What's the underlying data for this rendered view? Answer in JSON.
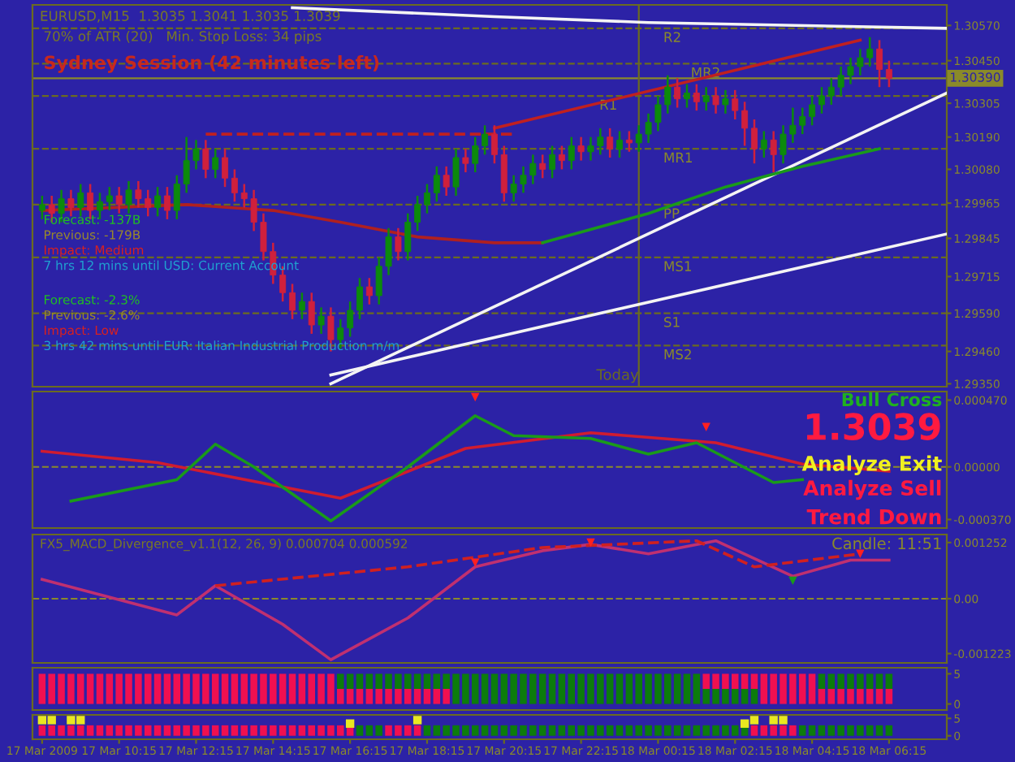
{
  "chart_data": [
    {
      "type": "candlestick",
      "title": "EURUSD,M15  1.3035 1.3041 1.3035 1.3039",
      "x": [
        "2009-03-17T08:15",
        "2009-03-17T08:30",
        "2009-03-17T08:45",
        "2009-03-17T09:00",
        "2009-03-17T09:15",
        "2009-03-17T09:30",
        "2009-03-17T09:45",
        "2009-03-17T10:00",
        "2009-03-17T10:15",
        "2009-03-17T10:30",
        "2009-03-17T10:45",
        "2009-03-17T11:00",
        "2009-03-17T11:15",
        "2009-03-17T11:30",
        "2009-03-17T11:45",
        "2009-03-17T12:00",
        "2009-03-17T12:15",
        "2009-03-17T12:30",
        "2009-03-17T12:45",
        "2009-03-17T13:00",
        "2009-03-17T13:15",
        "2009-03-17T13:30",
        "2009-03-17T13:45",
        "2009-03-17T14:00",
        "2009-03-17T14:15",
        "2009-03-17T14:30",
        "2009-03-17T14:45",
        "2009-03-17T15:00",
        "2009-03-17T15:15",
        "2009-03-17T15:30",
        "2009-03-17T15:45",
        "2009-03-17T16:00",
        "2009-03-17T16:15",
        "2009-03-17T16:30",
        "2009-03-17T16:45",
        "2009-03-17T17:00",
        "2009-03-17T17:15",
        "2009-03-17T17:30",
        "2009-03-17T17:45",
        "2009-03-17T18:00",
        "2009-03-17T18:15",
        "2009-03-17T18:30",
        "2009-03-17T18:45",
        "2009-03-17T19:00",
        "2009-03-17T19:15",
        "2009-03-17T19:30",
        "2009-03-17T19:45",
        "2009-03-17T20:00",
        "2009-03-17T20:15",
        "2009-03-17T20:30",
        "2009-03-17T20:45",
        "2009-03-17T21:00",
        "2009-03-17T21:15",
        "2009-03-17T21:30",
        "2009-03-17T21:45",
        "2009-03-17T22:00",
        "2009-03-17T22:15",
        "2009-03-17T22:30",
        "2009-03-17T22:45",
        "2009-03-17T23:00",
        "2009-03-17T23:15",
        "2009-03-17T23:30",
        "2009-03-17T23:45",
        "2009-03-18T00:00",
        "2009-03-18T00:15",
        "2009-03-18T00:30",
        "2009-03-18T00:45",
        "2009-03-18T01:00",
        "2009-03-18T01:15",
        "2009-03-18T01:30",
        "2009-03-18T01:45",
        "2009-03-18T02:00",
        "2009-03-18T02:15",
        "2009-03-18T02:30",
        "2009-03-18T02:45",
        "2009-03-18T03:00",
        "2009-03-18T03:15",
        "2009-03-18T03:30",
        "2009-03-18T03:45",
        "2009-03-18T04:00",
        "2009-03-18T04:15",
        "2009-03-18T04:30",
        "2009-03-18T04:45",
        "2009-03-18T05:00",
        "2009-03-18T05:15",
        "2009-03-18T05:30",
        "2009-03-18T05:45",
        "2009-03-18T06:00",
        "2009-03-18T06:15"
      ],
      "ohlc": [
        [
          1.2994,
          1.2999,
          1.2991,
          1.2996
        ],
        [
          1.2996,
          1.2999,
          1.299,
          1.2993
        ],
        [
          1.2993,
          1.3001,
          1.299,
          1.2998
        ],
        [
          1.2998,
          1.3001,
          1.2992,
          1.2995
        ],
        [
          1.2995,
          1.3003,
          1.2992,
          1.3
        ],
        [
          1.3,
          1.3003,
          1.2991,
          1.2994
        ],
        [
          1.2994,
          1.3,
          1.2991,
          1.2997
        ],
        [
          1.2997,
          1.3002,
          1.2994,
          1.2999
        ],
        [
          1.2999,
          1.3002,
          1.2993,
          1.2996
        ],
        [
          1.2996,
          1.3004,
          1.2993,
          1.3001
        ],
        [
          1.3001,
          1.3004,
          1.2995,
          1.2998
        ],
        [
          1.2998,
          1.3001,
          1.2992,
          1.2995
        ],
        [
          1.2995,
          1.3002,
          1.2992,
          1.2999
        ],
        [
          1.2999,
          1.3002,
          1.2991,
          1.2994
        ],
        [
          1.2994,
          1.3006,
          1.2991,
          1.3003
        ],
        [
          1.3003,
          1.3019,
          1.3,
          1.3011
        ],
        [
          1.3011,
          1.3018,
          1.3008,
          1.3015
        ],
        [
          1.3015,
          1.3018,
          1.3005,
          1.3008
        ],
        [
          1.3008,
          1.3015,
          1.3005,
          1.3012
        ],
        [
          1.3012,
          1.3015,
          1.3002,
          1.3005
        ],
        [
          1.3005,
          1.3008,
          1.2997,
          1.3
        ],
        [
          1.3,
          1.3003,
          1.2995,
          1.2998
        ],
        [
          1.2998,
          1.3001,
          1.2987,
          1.299
        ],
        [
          1.299,
          1.2993,
          1.2977,
          1.298
        ],
        [
          1.298,
          1.2983,
          1.2969,
          1.2972
        ],
        [
          1.2972,
          1.2975,
          1.2963,
          1.2966
        ],
        [
          1.2966,
          1.2969,
          1.2957,
          1.296
        ],
        [
          1.296,
          1.2966,
          1.2957,
          1.2963
        ],
        [
          1.2963,
          1.2966,
          1.2952,
          1.2955
        ],
        [
          1.2955,
          1.2961,
          1.2952,
          1.2958
        ],
        [
          1.2958,
          1.2961,
          1.2946,
          1.295
        ],
        [
          1.295,
          1.2957,
          1.2947,
          1.2954
        ],
        [
          1.2954,
          1.2963,
          1.2951,
          1.296
        ],
        [
          1.296,
          1.2971,
          1.2957,
          1.2968
        ],
        [
          1.2968,
          1.2971,
          1.2962,
          1.2965
        ],
        [
          1.2965,
          1.2978,
          1.2962,
          1.2975
        ],
        [
          1.2975,
          1.2988,
          1.2972,
          1.2985
        ],
        [
          1.2985,
          1.2988,
          1.2977,
          1.298
        ],
        [
          1.298,
          1.2993,
          1.2977,
          1.299
        ],
        [
          1.299,
          1.2999,
          1.2987,
          1.2996
        ],
        [
          1.2996,
          1.3003,
          1.2993,
          1.3
        ],
        [
          1.3,
          1.3009,
          1.2997,
          1.3006
        ],
        [
          1.3006,
          1.3009,
          1.2999,
          1.3002
        ],
        [
          1.3002,
          1.3015,
          1.2999,
          1.3012
        ],
        [
          1.3012,
          1.3015,
          1.3007,
          1.301
        ],
        [
          1.301,
          1.3019,
          1.3007,
          1.3016
        ],
        [
          1.3016,
          1.3023,
          1.3013,
          1.302
        ],
        [
          1.302,
          1.3023,
          1.301,
          1.3013
        ],
        [
          1.3013,
          1.3016,
          1.2997,
          1.3
        ],
        [
          1.3,
          1.3006,
          1.2997,
          1.3003
        ],
        [
          1.3003,
          1.3009,
          1.3,
          1.3006
        ],
        [
          1.3006,
          1.3013,
          1.3003,
          1.301
        ],
        [
          1.301,
          1.3013,
          1.3005,
          1.3008
        ],
        [
          1.3008,
          1.3016,
          1.3005,
          1.3013
        ],
        [
          1.3013,
          1.3016,
          1.3008,
          1.3011
        ],
        [
          1.3011,
          1.3019,
          1.3008,
          1.3016
        ],
        [
          1.3016,
          1.3019,
          1.3011,
          1.3014
        ],
        [
          1.3014,
          1.3019,
          1.3011,
          1.3016
        ],
        [
          1.3016,
          1.3022,
          1.3013,
          1.3019
        ],
        [
          1.3019,
          1.3022,
          1.3012,
          1.3015
        ],
        [
          1.3015,
          1.3021,
          1.3012,
          1.3018
        ],
        [
          1.3018,
          1.3021,
          1.3014,
          1.3017
        ],
        [
          1.3017,
          1.3023,
          1.3014,
          1.302
        ],
        [
          1.302,
          1.3027,
          1.3017,
          1.3024
        ],
        [
          1.3024,
          1.3033,
          1.3021,
          1.303
        ],
        [
          1.303,
          1.304,
          1.3027,
          1.3036
        ],
        [
          1.3036,
          1.3039,
          1.3029,
          1.3032
        ],
        [
          1.3032,
          1.3037,
          1.3029,
          1.3034
        ],
        [
          1.3034,
          1.3037,
          1.3028,
          1.3031
        ],
        [
          1.3031,
          1.3036,
          1.3028,
          1.3033
        ],
        [
          1.3033,
          1.3036,
          1.3027,
          1.303
        ],
        [
          1.303,
          1.3035,
          1.3027,
          1.3032
        ],
        [
          1.3032,
          1.3035,
          1.3025,
          1.3028
        ],
        [
          1.3028,
          1.3031,
          1.3016,
          1.3022
        ],
        [
          1.3022,
          1.3025,
          1.301,
          1.3015
        ],
        [
          1.3015,
          1.3021,
          1.3012,
          1.3018
        ],
        [
          1.3018,
          1.3021,
          1.3007,
          1.3013
        ],
        [
          1.3013,
          1.3023,
          1.301,
          1.302
        ],
        [
          1.302,
          1.3029,
          1.3017,
          1.3023
        ],
        [
          1.3023,
          1.3029,
          1.302,
          1.3026
        ],
        [
          1.3026,
          1.3033,
          1.3023,
          1.303
        ],
        [
          1.303,
          1.3036,
          1.3027,
          1.3033
        ],
        [
          1.3033,
          1.3039,
          1.303,
          1.3036
        ],
        [
          1.3036,
          1.3043,
          1.3033,
          1.304
        ],
        [
          1.304,
          1.3046,
          1.3037,
          1.3043
        ],
        [
          1.3043,
          1.3049,
          1.304,
          1.3046
        ],
        [
          1.3046,
          1.3053,
          1.3043,
          1.3049
        ],
        [
          1.3049,
          1.3052,
          1.3036,
          1.3042
        ],
        [
          1.3042,
          1.3045,
          1.3036,
          1.3039
        ]
      ],
      "series": [
        {
          "type": "line",
          "color": "#f4f4f4",
          "x": [
            "2009-03-17T14:45",
            "2009-03-17T20:00",
            "2009-03-18T00:00",
            "2009-03-18T07:45"
          ],
          "values": [
            1.3063,
            1.306,
            1.3058,
            1.3056
          ]
        },
        {
          "type": "line",
          "color": "#f4f4f4",
          "x": [
            "2009-03-17T15:45",
            "2009-03-18T07:45"
          ],
          "values": [
            1.2935,
            1.3034
          ]
        },
        {
          "type": "line",
          "color": "#f4f4f4",
          "x": [
            "2009-03-17T15:45",
            "2009-03-18T07:45"
          ],
          "values": [
            1.2938,
            1.2986
          ]
        },
        {
          "type": "line",
          "color": "#c02020",
          "x": [
            "2009-03-17T20:00",
            "2009-03-18T05:30"
          ],
          "values": [
            1.3022,
            1.3052
          ]
        },
        {
          "type": "line",
          "color": "#c02020",
          "line_style": "dashed",
          "x": [
            "2009-03-17T12:30",
            "2009-03-17T20:30"
          ],
          "values": [
            1.302,
            1.302
          ]
        },
        {
          "type": "line",
          "color": "#b02020",
          "x": [
            "2009-03-17T08:15",
            "2009-03-17T12:00",
            "2009-03-17T14:15",
            "2009-03-17T16:00",
            "2009-03-17T18:00",
            "2009-03-17T20:00",
            "2009-03-17T21:15"
          ],
          "values": [
            1.2994,
            1.2996,
            1.2994,
            1.299,
            1.2985,
            1.2983,
            1.2983
          ]
        },
        {
          "type": "line",
          "color": "#1a9a1a",
          "x": [
            "2009-03-17T21:15",
            "2009-03-18T00:00",
            "2009-03-18T02:00",
            "2009-03-18T04:00",
            "2009-03-18T06:00"
          ],
          "values": [
            1.2983,
            1.2993,
            1.3002,
            1.3009,
            1.3015
          ]
        }
      ],
      "ref_lines": [
        {
          "axis": "y",
          "value": 1.3056,
          "label": "R2",
          "color": "#6b6b20",
          "line_style": "dashed"
        },
        {
          "axis": "y",
          "value": 1.3044,
          "label": "MR2",
          "color": "#6b6b20",
          "line_style": "dashed"
        },
        {
          "axis": "y",
          "value": 1.3033,
          "label": "R1",
          "color": "#6b6b20",
          "line_style": "dashed"
        },
        {
          "axis": "y",
          "value": 1.3015,
          "label": "MR1",
          "color": "#6b6b20",
          "line_style": "dashed"
        },
        {
          "axis": "y",
          "value": 1.2996,
          "label": "PP",
          "color": "#6b6b20",
          "line_style": "dashed"
        },
        {
          "axis": "y",
          "value": 1.2978,
          "label": "MS1",
          "color": "#6b6b20",
          "line_style": "dashed"
        },
        {
          "axis": "y",
          "value": 1.2959,
          "label": "S1",
          "color": "#6b6b20",
          "line_style": "dashed"
        },
        {
          "axis": "y",
          "value": 1.2948,
          "label": "MS2",
          "color": "#6b6b20",
          "line_style": "dashed"
        },
        {
          "axis": "y",
          "value": 1.3039,
          "label": "1.30390",
          "color": "#8a8a2a",
          "line_style": "solid"
        },
        {
          "axis": "x",
          "value": "2009-03-17T23:45",
          "label": "Today",
          "color": "#6b6b20",
          "line_style": "solid"
        }
      ],
      "annotations": [
        "70% of ATR (20)   Min. Stop Loss: 34 pips",
        "Sydney Session (42 minutes left)",
        "Forecast: -137B",
        "Previous: -179B",
        "Impact: Medium",
        "7 hrs 12 mins until USD: Current Account",
        "Forecast: -2.3%",
        "Previous: -2.6%",
        "Impact: Low",
        "3 hrs 42 mins until EUR: Italian Industrial Production m/m"
      ],
      "xlim": [
        "2009-03-17T08:00",
        "2009-03-18T07:45"
      ],
      "ylim": [
        1.2934,
        1.3064
      ],
      "yticks": [
        {
          "value": 1.3057,
          "label": "1.30570"
        },
        {
          "value": 1.3045,
          "label": "1.30450"
        },
        {
          "value": 1.30305,
          "label": "1.30305"
        },
        {
          "value": 1.3019,
          "label": "1.30190"
        },
        {
          "value": 1.3008,
          "label": "1.30080"
        },
        {
          "value": 1.29965,
          "label": "1.29965"
        },
        {
          "value": 1.29845,
          "label": "1.29845"
        },
        {
          "value": 1.29715,
          "label": "1.29715"
        },
        {
          "value": 1.2959,
          "label": "1.29590"
        },
        {
          "value": 1.2946,
          "label": "1.29460"
        },
        {
          "value": 1.2935,
          "label": "1.29350"
        }
      ],
      "tick_labels": "y"
    },
    {
      "type": "line",
      "series": [
        {
          "color": "#d01c30",
          "x": [
            "2009-03-17T08:15",
            "2009-03-17T11:15",
            "2009-03-17T16:00",
            "2009-03-17T19:15",
            "2009-03-17T22:30",
            "2009-03-18T01:45",
            "2009-03-18T04:00",
            "2009-03-18T06:15"
          ],
          "values": [
            0.00011,
            3e-05,
            -0.00022,
            0.00013,
            0.00024,
            0.00017,
            2e-05,
            -3e-05
          ]
        },
        {
          "color": "#1a9a1a",
          "x": [
            "2009-03-17T09:00",
            "2009-03-17T11:45",
            "2009-03-17T12:45",
            "2009-03-17T13:45",
            "2009-03-17T15:45",
            "2009-03-17T17:45",
            "2009-03-17T19:30",
            "2009-03-17T20:30",
            "2009-03-17T22:30",
            "2009-03-18T00:00",
            "2009-03-18T01:15",
            "2009-03-18T03:15",
            "2009-03-18T04:00"
          ],
          "values": [
            -0.00024,
            -9e-05,
            0.00016,
            0.0,
            -0.00038,
            0.0,
            0.00036,
            0.00022,
            0.0002,
            9e-05,
            0.00017,
            -0.00011,
            -9e-05
          ]
        },
        {
          "type": "scatter",
          "color": "#ff2020",
          "marker": "triangle",
          "x": [
            "2009-03-17T19:30",
            "2009-03-18T01:30"
          ],
          "values": [
            0.00049,
            0.00028
          ]
        }
      ],
      "ref_lines": [
        {
          "axis": "y",
          "value": 0,
          "color": "#8a8a2a",
          "line_style": "dashed"
        }
      ],
      "annotations": [
        "Bull Cross",
        "1.3039",
        "Analyze Exit",
        "Analyze Sell",
        "Trend Down"
      ],
      "xlim": [
        "2009-03-17T08:00",
        "2009-03-18T07:45"
      ],
      "ylim": [
        -0.00043,
        0.00053
      ],
      "yticks": [
        {
          "value": 0.00047,
          "label": "0.000470"
        },
        {
          "value": 0,
          "label": "0.00000"
        },
        {
          "value": -0.00037,
          "label": "-0.000370"
        }
      ],
      "tick_labels": "y"
    },
    {
      "type": "line",
      "series": [
        {
          "color": "#c03070",
          "x": [
            "2009-03-17T08:15",
            "2009-03-17T11:45",
            "2009-03-17T12:45",
            "2009-03-17T14:30",
            "2009-03-17T15:45",
            "2009-03-17T17:45",
            "2009-03-17T19:30",
            "2009-03-17T21:15",
            "2009-03-17T22:30",
            "2009-03-18T00:00",
            "2009-03-18T01:45",
            "2009-03-18T03:45",
            "2009-03-18T05:15",
            "2009-03-18T06:15"
          ],
          "values": [
            0.00043,
            -0.00036,
            0.00029,
            -0.00057,
            -0.00136,
            -0.00043,
            0.00071,
            0.00107,
            0.00121,
            0.001,
            0.00129,
            0.0005,
            0.00086,
            0.00086
          ]
        },
        {
          "color": "#d02020",
          "line_style": "dashed",
          "x": [
            "2009-03-17T12:45",
            "2009-03-17T17:45",
            "2009-03-17T21:15",
            "2009-03-18T01:15",
            "2009-03-18T02:45",
            "2009-03-18T05:30"
          ],
          "values": [
            0.00029,
            0.00071,
            0.00114,
            0.00129,
            0.00071,
            0.001
          ]
        },
        {
          "type": "scatter",
          "color": "#ff2020",
          "marker": "triangle",
          "x": [
            "2009-03-17T19:30",
            "2009-03-17T22:30",
            "2009-03-18T05:30"
          ],
          "values": [
            0.0008,
            0.00125,
            0.001
          ]
        },
        {
          "type": "scatter",
          "color": "#1a9a1a",
          "marker": "triangle",
          "x": [
            "2009-03-18T03:45"
          ],
          "values": [
            0.0004
          ]
        }
      ],
      "ref_lines": [
        {
          "axis": "y",
          "value": 0,
          "color": "#8a8a2a",
          "line_style": "dashed"
        }
      ],
      "annotations": [
        "FX5_MACD_Divergence_v1.1(12, 26, 9) 0.000704 0.000592",
        "Candle: 11:51"
      ],
      "xlim": [
        "2009-03-17T08:00",
        "2009-03-18T07:45"
      ],
      "ylim": [
        -0.00143,
        0.00143
      ],
      "yticks": [
        {
          "value": 0.001252,
          "label": "0.001252"
        },
        {
          "value": 0,
          "label": "0.00"
        },
        {
          "value": -0.001223,
          "label": "-0.001223"
        }
      ],
      "tick_labels": "y"
    },
    {
      "type": "bar",
      "stacked": true,
      "x": [
        "2009-03-17T08:15",
        "2009-03-17T08:30",
        "2009-03-17T08:45",
        "2009-03-17T09:00",
        "2009-03-17T09:15",
        "2009-03-17T09:30",
        "2009-03-17T09:45",
        "2009-03-17T10:00",
        "2009-03-17T10:15",
        "2009-03-17T10:30",
        "2009-03-17T10:45",
        "2009-03-17T11:00",
        "2009-03-17T11:15",
        "2009-03-17T11:30",
        "2009-03-17T11:45",
        "2009-03-17T12:00",
        "2009-03-17T12:15",
        "2009-03-17T12:30",
        "2009-03-17T12:45",
        "2009-03-17T13:00",
        "2009-03-17T13:15",
        "2009-03-17T13:30",
        "2009-03-17T13:45",
        "2009-03-17T14:00",
        "2009-03-17T14:15",
        "2009-03-17T14:30",
        "2009-03-17T14:45",
        "2009-03-17T15:00",
        "2009-03-17T15:15",
        "2009-03-17T15:30",
        "2009-03-17T15:45",
        "2009-03-17T16:00",
        "2009-03-17T16:15",
        "2009-03-17T16:30",
        "2009-03-17T16:45",
        "2009-03-17T17:00",
        "2009-03-17T17:15",
        "2009-03-17T17:30",
        "2009-03-17T17:45",
        "2009-03-17T18:00",
        "2009-03-17T18:15",
        "2009-03-17T18:30",
        "2009-03-17T18:45",
        "2009-03-17T19:00",
        "2009-03-17T19:15",
        "2009-03-17T19:30",
        "2009-03-17T19:45",
        "2009-03-17T20:00",
        "2009-03-17T20:15",
        "2009-03-17T20:30",
        "2009-03-17T20:45",
        "2009-03-17T21:00",
        "2009-03-17T21:15",
        "2009-03-17T21:30",
        "2009-03-17T21:45",
        "2009-03-17T22:00",
        "2009-03-17T22:15",
        "2009-03-17T22:30",
        "2009-03-17T22:45",
        "2009-03-17T23:00",
        "2009-03-17T23:15",
        "2009-03-17T23:30",
        "2009-03-17T23:45",
        "2009-03-18T00:00",
        "2009-03-18T00:15",
        "2009-03-18T00:30",
        "2009-03-18T00:45",
        "2009-03-18T01:00",
        "2009-03-18T01:15",
        "2009-03-18T01:30",
        "2009-03-18T01:45",
        "2009-03-18T02:00",
        "2009-03-18T02:15",
        "2009-03-18T02:30",
        "2009-03-18T02:45",
        "2009-03-18T03:00",
        "2009-03-18T03:15",
        "2009-03-18T03:30",
        "2009-03-18T03:45",
        "2009-03-18T04:00",
        "2009-03-18T04:15",
        "2009-03-18T04:30",
        "2009-03-18T04:45",
        "2009-03-18T05:00",
        "2009-03-18T05:15",
        "2009-03-18T05:30",
        "2009-03-18T05:45",
        "2009-03-18T06:00",
        "2009-03-18T06:15"
      ],
      "series": [
        {
          "values": [
            2.5,
            2.5,
            2.5,
            2.5,
            2.5,
            2.5,
            2.5,
            2.5,
            2.5,
            2.5,
            2.5,
            2.5,
            2.5,
            2.5,
            2.5,
            2.5,
            2.5,
            2.5,
            2.5,
            2.5,
            2.5,
            2.5,
            2.5,
            2.5,
            2.5,
            2.5,
            2.5,
            2.5,
            2.5,
            2.5,
            2.5,
            2.5,
            2.5,
            2.5,
            2.5,
            2.5,
            2.5,
            2.5,
            2.5,
            2.5,
            2.5,
            2.5,
            2.5,
            2.5,
            2.5,
            2.5,
            2.5,
            2.5,
            2.5,
            2.5,
            2.5,
            2.5,
            2.5,
            2.5,
            2.5,
            2.5,
            2.5,
            2.5,
            2.5,
            2.5,
            2.5,
            2.5,
            2.5,
            2.5,
            2.5,
            2.5,
            2.5,
            2.5,
            2.5,
            2.5,
            2.5,
            2.5,
            2.5,
            2.5,
            2.5,
            2.5,
            2.5,
            2.5,
            2.5,
            2.5,
            2.5,
            2.5,
            2.5,
            2.5,
            2.5,
            2.5,
            2.5,
            2.5,
            2.5
          ],
          "colors": [
            "#f01050",
            "#f01050",
            "#f01050",
            "#f01050",
            "#f01050",
            "#f01050",
            "#f01050",
            "#f01050",
            "#f01050",
            "#f01050",
            "#f01050",
            "#f01050",
            "#f01050",
            "#f01050",
            "#f01050",
            "#f01050",
            "#f01050",
            "#f01050",
            "#f01050",
            "#f01050",
            "#f01050",
            "#f01050",
            "#f01050",
            "#f01050",
            "#f01050",
            "#f01050",
            "#f01050",
            "#f01050",
            "#f01050",
            "#f01050",
            "#f01050",
            "#f01050",
            "#f01050",
            "#f01050",
            "#f01050",
            "#f01050",
            "#f01050",
            "#f01050",
            "#f01050",
            "#f01050",
            "#f01050",
            "#f01050",
            "#f01050",
            "#0c7c0c",
            "#0c7c0c",
            "#0c7c0c",
            "#0c7c0c",
            "#0c7c0c",
            "#0c7c0c",
            "#0c7c0c",
            "#0c7c0c",
            "#0c7c0c",
            "#0c7c0c",
            "#0c7c0c",
            "#0c7c0c",
            "#0c7c0c",
            "#0c7c0c",
            "#0c7c0c",
            "#0c7c0c",
            "#0c7c0c",
            "#0c7c0c",
            "#0c7c0c",
            "#0c7c0c",
            "#0c7c0c",
            "#0c7c0c",
            "#0c7c0c",
            "#0c7c0c",
            "#0c7c0c",
            "#0c7c0c",
            "#0c7c0c",
            "#0c7c0c",
            "#0c7c0c",
            "#0c7c0c",
            "#0c7c0c",
            "#0c7c0c",
            "#f01050",
            "#f01050",
            "#f01050",
            "#f01050",
            "#f01050",
            "#f01050",
            "#f01050",
            "#f01050",
            "#f01050",
            "#f01050",
            "#f01050",
            "#f01050",
            "#f01050",
            "#f01050"
          ]
        },
        {
          "values": [
            2.5,
            2.5,
            2.5,
            2.5,
            2.5,
            2.5,
            2.5,
            2.5,
            2.5,
            2.5,
            2.5,
            2.5,
            2.5,
            2.5,
            2.5,
            2.5,
            2.5,
            2.5,
            2.5,
            2.5,
            2.5,
            2.5,
            2.5,
            2.5,
            2.5,
            2.5,
            2.5,
            2.5,
            2.5,
            2.5,
            2.5,
            2.5,
            2.5,
            2.5,
            2.5,
            2.5,
            2.5,
            2.5,
            2.5,
            2.5,
            2.5,
            2.5,
            2.5,
            2.5,
            2.5,
            2.5,
            2.5,
            2.5,
            2.5,
            2.5,
            2.5,
            2.5,
            2.5,
            2.5,
            2.5,
            2.5,
            2.5,
            2.5,
            2.5,
            2.5,
            2.5,
            2.5,
            2.5,
            2.5,
            2.5,
            2.5,
            2.5,
            2.5,
            2.5,
            2.5,
            2.5,
            2.5,
            2.5,
            2.5,
            2.5,
            2.5,
            2.5,
            2.5,
            2.5,
            2.5,
            2.5,
            2.5,
            2.5,
            2.5,
            2.5,
            2.5,
            2.5,
            2.5,
            2.5
          ],
          "colors": [
            "#f01050",
            "#f01050",
            "#f01050",
            "#f01050",
            "#f01050",
            "#f01050",
            "#f01050",
            "#f01050",
            "#f01050",
            "#f01050",
            "#f01050",
            "#f01050",
            "#f01050",
            "#f01050",
            "#f01050",
            "#f01050",
            "#f01050",
            "#f01050",
            "#f01050",
            "#f01050",
            "#f01050",
            "#f01050",
            "#f01050",
            "#f01050",
            "#f01050",
            "#f01050",
            "#f01050",
            "#f01050",
            "#f01050",
            "#f01050",
            "#f01050",
            "#0c7c0c",
            "#0c7c0c",
            "#0c7c0c",
            "#0c7c0c",
            "#0c7c0c",
            "#0c7c0c",
            "#0c7c0c",
            "#0c7c0c",
            "#0c7c0c",
            "#0c7c0c",
            "#0c7c0c",
            "#0c7c0c",
            "#0c7c0c",
            "#0c7c0c",
            "#0c7c0c",
            "#0c7c0c",
            "#0c7c0c",
            "#0c7c0c",
            "#0c7c0c",
            "#0c7c0c",
            "#0c7c0c",
            "#0c7c0c",
            "#0c7c0c",
            "#0c7c0c",
            "#0c7c0c",
            "#0c7c0c",
            "#0c7c0c",
            "#0c7c0c",
            "#0c7c0c",
            "#0c7c0c",
            "#0c7c0c",
            "#0c7c0c",
            "#0c7c0c",
            "#0c7c0c",
            "#0c7c0c",
            "#0c7c0c",
            "#0c7c0c",
            "#0c7c0c",
            "#f01050",
            "#f01050",
            "#f01050",
            "#f01050",
            "#f01050",
            "#f01050",
            "#f01050",
            "#f01050",
            "#f01050",
            "#f01050",
            "#f01050",
            "#f01050",
            "#0c7c0c",
            "#0c7c0c",
            "#0c7c0c",
            "#0c7c0c",
            "#0c7c0c",
            "#0c7c0c",
            "#0c7c0c",
            "#0c7c0c"
          ]
        }
      ],
      "xlim": [
        "2009-03-17T08:00",
        "2009-03-18T07:45"
      ],
      "ylim": [
        -1,
        6
      ],
      "yticks": [
        0,
        5
      ],
      "tick_labels": "y"
    },
    {
      "type": "bar",
      "x": [
        "2009-03-17T08:15",
        "2009-03-17T08:30",
        "2009-03-17T08:45",
        "2009-03-17T09:00",
        "2009-03-17T09:15",
        "2009-03-17T09:30",
        "2009-03-17T09:45",
        "2009-03-17T10:00",
        "2009-03-17T10:15",
        "2009-03-17T10:30",
        "2009-03-17T10:45",
        "2009-03-17T11:00",
        "2009-03-17T11:15",
        "2009-03-17T11:30",
        "2009-03-17T11:45",
        "2009-03-17T12:00",
        "2009-03-17T12:15",
        "2009-03-17T12:30",
        "2009-03-17T12:45",
        "2009-03-17T13:00",
        "2009-03-17T13:15",
        "2009-03-17T13:30",
        "2009-03-17T13:45",
        "2009-03-17T14:00",
        "2009-03-17T14:15",
        "2009-03-17T14:30",
        "2009-03-17T14:45",
        "2009-03-17T15:00",
        "2009-03-17T15:15",
        "2009-03-17T15:30",
        "2009-03-17T15:45",
        "2009-03-17T16:00",
        "2009-03-17T16:15",
        "2009-03-17T16:30",
        "2009-03-17T16:45",
        "2009-03-17T17:00",
        "2009-03-17T17:15",
        "2009-03-17T17:30",
        "2009-03-17T17:45",
        "2009-03-17T18:00",
        "2009-03-17T18:15",
        "2009-03-17T18:30",
        "2009-03-17T18:45",
        "2009-03-17T19:00",
        "2009-03-17T19:15",
        "2009-03-17T19:30",
        "2009-03-17T19:45",
        "2009-03-17T20:00",
        "2009-03-17T20:15",
        "2009-03-17T20:30",
        "2009-03-17T20:45",
        "2009-03-17T21:00",
        "2009-03-17T21:15",
        "2009-03-17T21:30",
        "2009-03-17T21:45",
        "2009-03-17T22:00",
        "2009-03-17T22:15",
        "2009-03-17T22:30",
        "2009-03-17T22:45",
        "2009-03-17T23:00",
        "2009-03-17T23:15",
        "2009-03-17T23:30",
        "2009-03-17T23:45",
        "2009-03-18T00:00",
        "2009-03-18T00:15",
        "2009-03-18T00:30",
        "2009-03-18T00:45",
        "2009-03-18T01:00",
        "2009-03-18T01:15",
        "2009-03-18T01:30",
        "2009-03-18T01:45",
        "2009-03-18T02:00",
        "2009-03-18T02:15",
        "2009-03-18T02:30",
        "2009-03-18T02:45",
        "2009-03-18T03:00",
        "2009-03-18T03:15",
        "2009-03-18T03:30",
        "2009-03-18T03:45",
        "2009-03-18T04:00",
        "2009-03-18T04:15",
        "2009-03-18T04:30",
        "2009-03-18T04:45",
        "2009-03-18T05:00",
        "2009-03-18T05:15",
        "2009-03-18T05:30",
        "2009-03-18T05:45",
        "2009-03-18T06:00",
        "2009-03-18T06:15"
      ],
      "series": [
        {
          "values": [
            3,
            3,
            3,
            3,
            3,
            3,
            3,
            3,
            3,
            3,
            3,
            3,
            3,
            3,
            3,
            3,
            3,
            3,
            3,
            3,
            3,
            3,
            3,
            3,
            3,
            3,
            3,
            3,
            3,
            3,
            3,
            3,
            3,
            3,
            3,
            3,
            3,
            3,
            3,
            3,
            3,
            3,
            3,
            3,
            3,
            3,
            3,
            3,
            3,
            3,
            3,
            3,
            3,
            3,
            3,
            3,
            3,
            3,
            3,
            3,
            3,
            3,
            3,
            3,
            3,
            3,
            3,
            3,
            3,
            3,
            3,
            3,
            3,
            3,
            3,
            3,
            3,
            3,
            3,
            3,
            3,
            3,
            3,
            3,
            3,
            3,
            3,
            3,
            3
          ],
          "colors": [
            "#f01050",
            "#f01050",
            "#f01050",
            "#f01050",
            "#f01050",
            "#f01050",
            "#f01050",
            "#f01050",
            "#f01050",
            "#f01050",
            "#f01050",
            "#f01050",
            "#f01050",
            "#f01050",
            "#f01050",
            "#f01050",
            "#f01050",
            "#f01050",
            "#f01050",
            "#f01050",
            "#f01050",
            "#f01050",
            "#f01050",
            "#f01050",
            "#f01050",
            "#f01050",
            "#f01050",
            "#f01050",
            "#f01050",
            "#f01050",
            "#f01050",
            "#f01050",
            "#f01050",
            "#0c7c0c",
            "#0c7c0c",
            "#0c7c0c",
            "#f01050",
            "#f01050",
            "#f01050",
            "#f01050",
            "#0c7c0c",
            "#0c7c0c",
            "#0c7c0c",
            "#0c7c0c",
            "#0c7c0c",
            "#0c7c0c",
            "#0c7c0c",
            "#0c7c0c",
            "#0c7c0c",
            "#0c7c0c",
            "#0c7c0c",
            "#0c7c0c",
            "#0c7c0c",
            "#0c7c0c",
            "#0c7c0c",
            "#0c7c0c",
            "#0c7c0c",
            "#0c7c0c",
            "#0c7c0c",
            "#0c7c0c",
            "#0c7c0c",
            "#0c7c0c",
            "#0c7c0c",
            "#0c7c0c",
            "#0c7c0c",
            "#0c7c0c",
            "#0c7c0c",
            "#0c7c0c",
            "#0c7c0c",
            "#0c7c0c",
            "#0c7c0c",
            "#0c7c0c",
            "#0c7c0c",
            "#0c7c0c",
            "#f01050",
            "#f01050",
            "#f01050",
            "#f01050",
            "#f01050",
            "#0c7c0c",
            "#0c7c0c",
            "#0c7c0c",
            "#0c7c0c",
            "#0c7c0c",
            "#0c7c0c",
            "#0c7c0c",
            "#0c7c0c",
            "#0c7c0c",
            "#0c7c0c"
          ]
        },
        {
          "type": "scatter",
          "color": "#e8e820",
          "marker": "square",
          "x": [
            "2009-03-17T08:15",
            "2009-03-17T08:30",
            "2009-03-17T09:00",
            "2009-03-17T09:15",
            "2009-03-17T16:15",
            "2009-03-17T18:00",
            "2009-03-18T02:30",
            "2009-03-18T02:45",
            "2009-03-18T03:15",
            "2009-03-18T03:30"
          ],
          "values": [
            4.5,
            4.5,
            4.5,
            4.5,
            3.5,
            4.5,
            3.5,
            4.5,
            4.5,
            4.5
          ]
        }
      ],
      "xlim": [
        "2009-03-17T08:00",
        "2009-03-18T07:45"
      ],
      "xticks": [
        {
          "value": "2009-03-17T08:15",
          "label": "17 Mar 2009"
        },
        {
          "value": "2009-03-17T10:15",
          "label": "17 Mar 10:15"
        },
        {
          "value": "2009-03-17T12:15",
          "label": "17 Mar 12:15"
        },
        {
          "value": "2009-03-17T14:15",
          "label": "17 Mar 14:15"
        },
        {
          "value": "2009-03-17T16:15",
          "label": "17 Mar 16:15"
        },
        {
          "value": "2009-03-17T18:15",
          "label": "17 Mar 18:15"
        },
        {
          "value": "2009-03-17T20:15",
          "label": "17 Mar 20:15"
        },
        {
          "value": "2009-03-17T22:15",
          "label": "17 Mar 22:15"
        },
        {
          "value": "2009-03-18T00:15",
          "label": "18 Mar 00:15"
        },
        {
          "value": "2009-03-18T02:15",
          "label": "18 Mar 02:15"
        },
        {
          "value": "2009-03-18T04:15",
          "label": "18 Mar 04:15"
        },
        {
          "value": "2009-03-18T06:15",
          "label": "18 Mar 06:15"
        }
      ],
      "ylim": [
        -1,
        6
      ],
      "yticks": [
        0,
        5
      ]
    }
  ]
}
